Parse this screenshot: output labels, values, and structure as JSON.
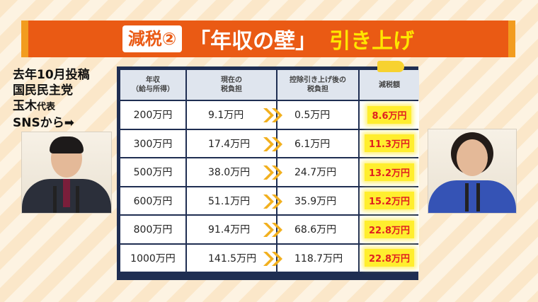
{
  "title": {
    "tag": "減税②",
    "main": "「年収の壁」",
    "accent": "引き上げ"
  },
  "caption": {
    "line1": "去年10月投稿",
    "line2": "国民民主党",
    "line3_name": "玉木",
    "line3_role": "代表",
    "line4": "SNSから➡"
  },
  "table": {
    "headers": {
      "income": "年収\n（給与所得）",
      "current": "現在の\n税負担",
      "after": "控除引き上げ後の\n税負担",
      "reduction": "減税額"
    },
    "rows": [
      {
        "income": "200万円",
        "current": "9.1万円",
        "after": "0.5万円",
        "reduction": "8.6万円"
      },
      {
        "income": "300万円",
        "current": "17.4万円",
        "after": "6.1万円",
        "reduction": "11.3万円"
      },
      {
        "income": "500万円",
        "current": "38.0万円",
        "after": "24.7万円",
        "reduction": "13.2万円"
      },
      {
        "income": "600万円",
        "current": "51.1万円",
        "after": "35.9万円",
        "reduction": "15.2万円"
      },
      {
        "income": "800万円",
        "current": "91.4万円",
        "after": "68.6万円",
        "reduction": "22.8万円"
      },
      {
        "income": "1000万円",
        "current": "141.5万円",
        "after": "118.7万円",
        "reduction": "22.8万円"
      }
    ]
  },
  "colors": {
    "banner": "#ea5a14",
    "banner_accent": "#ffe600",
    "table_frame": "#1f2e52",
    "highlight": "#ffee2e",
    "highlight_text": "#e02020",
    "arrow": "#f2b01e"
  },
  "icons": {
    "row_arrow": "double-chevron-right-icon",
    "caption_arrow": "right-arrow-icon"
  }
}
